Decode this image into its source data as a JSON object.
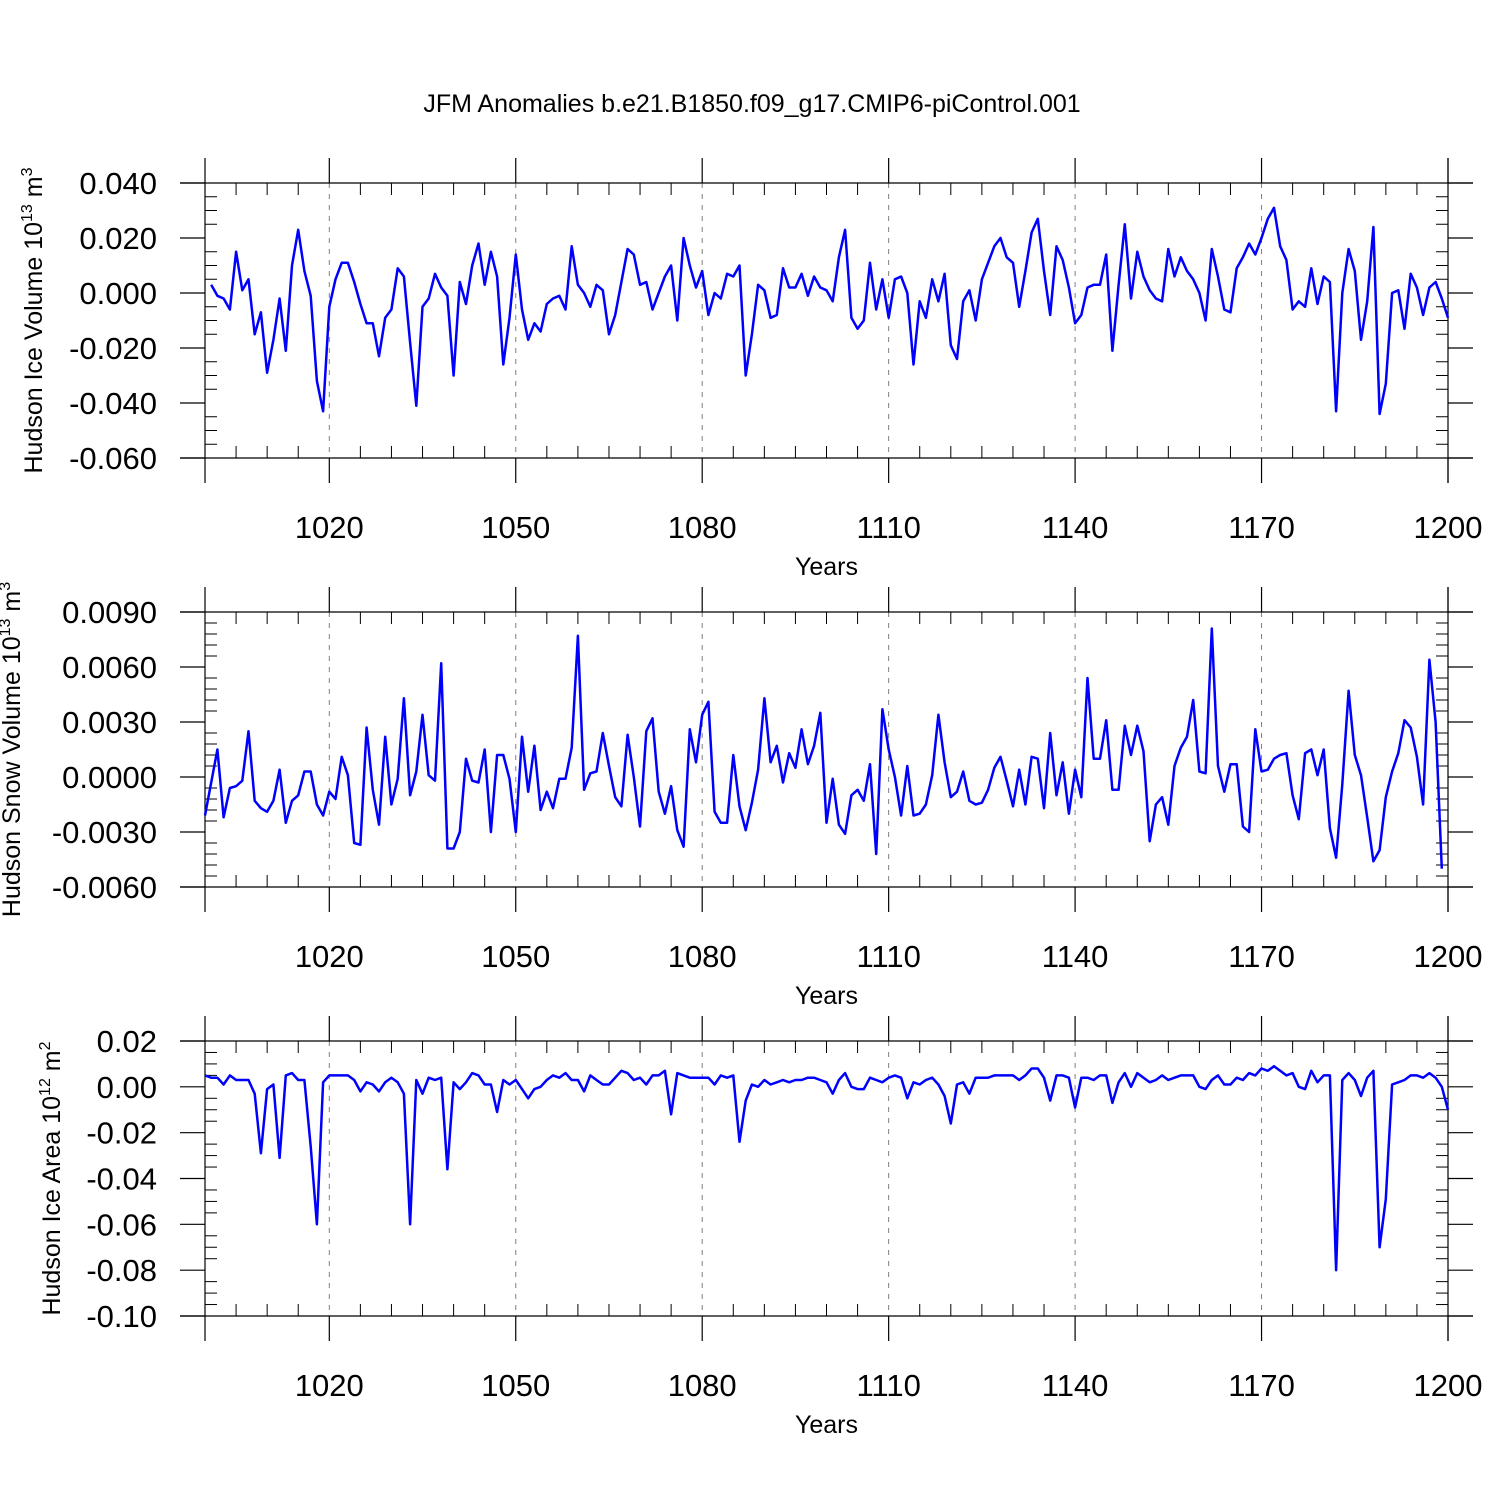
{
  "title": "JFM Anomalies b.e21.B1850.f09_g17.CMIP6-piControl.001",
  "colors": {
    "line": "#0000ff",
    "axis": "#000000",
    "grid": "#808080"
  },
  "chart_data": [
    {
      "type": "line",
      "ylabel": "Hudson Ice Volume 10",
      "ylabel_exp": "13",
      "ylabel_unit": " m",
      "ylabel_unit_exp": "3",
      "xlabel": "Years",
      "xlim": [
        1000,
        1200
      ],
      "ylim": [
        -0.06,
        0.04
      ],
      "x_ticks": [
        1020,
        1050,
        1080,
        1110,
        1140,
        1170,
        1200
      ],
      "x_tick_labels": [
        "1020",
        "1050",
        "1080",
        "1110",
        "1140",
        "1170",
        "1200"
      ],
      "y_ticks": [
        -0.06,
        -0.04,
        -0.02,
        0.0,
        0.02,
        0.04
      ],
      "y_tick_labels": [
        "-0.060",
        "-0.040",
        "-0.020",
        "0.000",
        "0.020",
        "0.040"
      ],
      "y_minor": 0.005,
      "grid": "vertical-dashed",
      "x_start": 1001,
      "values": [
        0.003,
        -0.001,
        -0.002,
        -0.006,
        0.015,
        0.001,
        0.005,
        -0.015,
        -0.007,
        -0.029,
        -0.017,
        -0.002,
        -0.021,
        0.01,
        0.023,
        0.008,
        -0.001,
        -0.032,
        -0.043,
        -0.005,
        0.005,
        0.011,
        0.011,
        0.004,
        -0.004,
        -0.011,
        -0.011,
        -0.023,
        -0.009,
        -0.006,
        0.009,
        0.006,
        -0.018,
        -0.041,
        -0.005,
        -0.002,
        0.007,
        0.002,
        -0.001,
        -0.03,
        0.004,
        -0.004,
        0.01,
        0.018,
        0.003,
        0.015,
        0.006,
        -0.026,
        -0.009,
        0.014,
        -0.006,
        -0.017,
        -0.011,
        -0.014,
        -0.004,
        -0.002,
        -0.001,
        -0.006,
        0.017,
        0.003,
        0.0,
        -0.005,
        0.003,
        0.001,
        -0.015,
        -0.008,
        0.004,
        0.016,
        0.014,
        0.003,
        0.004,
        -0.006,
        0.0,
        0.006,
        0.01,
        -0.01,
        0.02,
        0.01,
        0.002,
        0.008,
        -0.008,
        0.0,
        -0.002,
        0.007,
        0.006,
        0.01,
        -0.03,
        -0.015,
        0.003,
        0.001,
        -0.009,
        -0.008,
        0.009,
        0.002,
        0.002,
        0.007,
        -0.001,
        0.006,
        0.002,
        0.001,
        -0.003,
        0.013,
        0.023,
        -0.009,
        -0.013,
        -0.01,
        0.011,
        -0.006,
        0.005,
        -0.009,
        0.005,
        0.006,
        0.0,
        -0.026,
        -0.003,
        -0.009,
        0.005,
        -0.003,
        0.007,
        -0.019,
        -0.024,
        -0.003,
        0.001,
        -0.01,
        0.005,
        0.011,
        0.017,
        0.02,
        0.013,
        0.011,
        -0.005,
        0.008,
        0.022,
        0.027,
        0.008,
        -0.008,
        0.017,
        0.012,
        0.002,
        -0.011,
        -0.008,
        0.002,
        0.003,
        0.003,
        0.014,
        -0.021,
        0.003,
        0.025,
        -0.002,
        0.015,
        0.006,
        0.001,
        -0.002,
        -0.003,
        0.016,
        0.006,
        0.013,
        0.008,
        0.005,
        0.0,
        -0.01,
        0.016,
        0.006,
        -0.006,
        -0.007,
        0.009,
        0.013,
        0.018,
        0.014,
        0.02,
        0.027,
        0.031,
        0.017,
        0.012,
        -0.006,
        -0.003,
        -0.005,
        0.009,
        -0.004,
        0.006,
        0.004,
        -0.043,
        0.0,
        0.016,
        0.008,
        -0.017,
        -0.003,
        0.024,
        -0.044,
        -0.033,
        0.0,
        0.001,
        -0.013,
        0.007,
        0.002,
        -0.008,
        0.002,
        0.004,
        -0.002,
        -0.009
      ]
    },
    {
      "type": "line",
      "ylabel": "Hudson Snow Volume 10",
      "ylabel_exp": "13",
      "ylabel_unit": " m",
      "ylabel_unit_exp": "3",
      "xlabel": "Years",
      "xlim": [
        1000,
        1200
      ],
      "ylim": [
        -0.006,
        0.009
      ],
      "x_ticks": [
        1020,
        1050,
        1080,
        1110,
        1140,
        1170,
        1200
      ],
      "x_tick_labels": [
        "1020",
        "1050",
        "1080",
        "1110",
        "1140",
        "1170",
        "1200"
      ],
      "y_ticks": [
        -0.006,
        -0.003,
        0.0,
        0.003,
        0.006,
        0.009
      ],
      "y_tick_labels": [
        "-0.0060",
        "-0.0030",
        "0.0000",
        "0.0030",
        "0.0060",
        "0.0090"
      ],
      "y_minor": 0.0006,
      "grid": "vertical-dashed",
      "x_start": 1000,
      "values": [
        -0.0021,
        -0.0003,
        0.0015,
        -0.0022,
        -0.0006,
        -0.0005,
        -0.0002,
        0.0025,
        -0.0013,
        -0.0017,
        -0.0019,
        -0.0013,
        0.0004,
        -0.0025,
        -0.0013,
        -0.001,
        0.0003,
        0.0003,
        -0.0015,
        -0.0021,
        -0.0008,
        -0.0012,
        0.0011,
        0.0001,
        -0.0036,
        -0.0037,
        0.0027,
        -0.0007,
        -0.0026,
        0.0022,
        -0.0015,
        -0.0001,
        0.0043,
        -0.001,
        0.0003,
        0.0034,
        0.0001,
        -0.0002,
        0.0062,
        -0.0039,
        -0.0039,
        -0.003,
        0.001,
        -0.0002,
        -0.0003,
        0.0015,
        -0.003,
        0.0012,
        0.0012,
        -0.0001,
        -0.003,
        0.0022,
        -0.0008,
        0.0017,
        -0.0018,
        -0.0008,
        -0.0017,
        -0.0001,
        -0.0001,
        0.0016,
        0.0077,
        -0.0007,
        0.0002,
        0.0003,
        0.0024,
        0.0006,
        -0.0011,
        -0.0016,
        0.0023,
        0.0,
        -0.0027,
        0.0025,
        0.0032,
        -0.0008,
        -0.002,
        -0.0005,
        -0.0029,
        -0.0038,
        0.0026,
        0.0008,
        0.0034,
        0.0041,
        -0.0019,
        -0.0025,
        -0.0025,
        0.0012,
        -0.0016,
        -0.0029,
        -0.0014,
        0.0004,
        0.0043,
        0.0008,
        0.0017,
        -0.0003,
        0.0013,
        0.0005,
        0.0026,
        0.0007,
        0.0017,
        0.0035,
        -0.0025,
        -0.0001,
        -0.0026,
        -0.0031,
        -0.001,
        -0.0007,
        -0.0013,
        0.0007,
        -0.0042,
        0.0037,
        0.0015,
        0.0,
        -0.0021,
        0.0006,
        -0.0021,
        -0.002,
        -0.0015,
        0.0001,
        0.0034,
        0.0008,
        -0.0011,
        -0.0008,
        0.0003,
        -0.0013,
        -0.0015,
        -0.0014,
        -0.0007,
        0.0005,
        0.0011,
        -0.0002,
        -0.0016,
        0.0004,
        -0.0015,
        0.0011,
        0.001,
        -0.0017,
        0.0024,
        -0.001,
        0.0008,
        -0.002,
        0.0004,
        -0.0011,
        0.0054,
        0.001,
        0.001,
        0.0031,
        -0.0007,
        -0.0007,
        0.0028,
        0.0012,
        0.0028,
        0.0014,
        -0.0035,
        -0.0015,
        -0.0011,
        -0.0026,
        0.0006,
        0.0016,
        0.0022,
        0.0042,
        0.0003,
        0.0002,
        0.0081,
        0.0006,
        -0.0008,
        0.0007,
        0.0007,
        -0.0027,
        -0.003,
        0.0026,
        0.0003,
        0.0004,
        0.001,
        0.0012,
        0.0013,
        -0.001,
        -0.0023,
        0.0013,
        0.0015,
        0.0001,
        0.0015,
        -0.0028,
        -0.0044,
        -0.0004,
        0.0047,
        0.0012,
        0.0001,
        -0.0022,
        -0.0046,
        -0.004,
        -0.0011,
        0.0003,
        0.0013,
        0.0031,
        0.0027,
        0.0011,
        -0.0015,
        0.0064,
        0.003,
        -0.005
      ]
    },
    {
      "type": "line",
      "ylabel": "Hudson Ice Area 10",
      "ylabel_exp": "12",
      "ylabel_unit": " m",
      "ylabel_unit_exp": "2",
      "xlabel": "Years",
      "xlim": [
        1000,
        1200
      ],
      "ylim": [
        -0.1,
        0.02
      ],
      "x_ticks": [
        1020,
        1050,
        1080,
        1110,
        1140,
        1170,
        1200
      ],
      "x_tick_labels": [
        "1020",
        "1050",
        "1080",
        "1110",
        "1140",
        "1170",
        "1200"
      ],
      "y_ticks": [
        -0.1,
        -0.08,
        -0.06,
        -0.04,
        -0.02,
        0.0,
        0.02
      ],
      "y_tick_labels": [
        "-0.10",
        "-0.08",
        "-0.06",
        "-0.04",
        "-0.02",
        "0.00",
        "0.02"
      ],
      "y_minor": 0.005,
      "grid": "vertical-dashed",
      "x_start": 1000,
      "values": [
        0.005,
        0.004,
        0.004,
        0.001,
        0.005,
        0.003,
        0.003,
        0.003,
        -0.003,
        -0.029,
        -0.001,
        0.001,
        -0.031,
        0.005,
        0.006,
        0.003,
        0.003,
        -0.026,
        -0.06,
        0.002,
        0.005,
        0.005,
        0.005,
        0.005,
        0.003,
        -0.002,
        0.002,
        0.001,
        -0.002,
        0.002,
        0.004,
        0.002,
        -0.003,
        -0.06,
        0.003,
        -0.003,
        0.004,
        0.003,
        0.004,
        -0.036,
        0.002,
        -0.001,
        0.002,
        0.006,
        0.005,
        0.001,
        0.001,
        -0.011,
        0.003,
        0.001,
        0.003,
        -0.001,
        -0.005,
        -0.001,
        0.0,
        0.003,
        0.005,
        0.004,
        0.006,
        0.003,
        0.003,
        -0.002,
        0.005,
        0.003,
        0.001,
        0.001,
        0.004,
        0.007,
        0.006,
        0.003,
        0.004,
        0.001,
        0.005,
        0.005,
        0.007,
        -0.012,
        0.006,
        0.005,
        0.004,
        0.004,
        0.004,
        0.004,
        0.001,
        0.005,
        0.004,
        0.005,
        -0.024,
        -0.006,
        0.001,
        0.0,
        0.003,
        0.001,
        0.002,
        0.003,
        0.002,
        0.003,
        0.003,
        0.004,
        0.004,
        0.003,
        0.002,
        -0.003,
        0.003,
        0.006,
        0.0,
        -0.001,
        -0.001,
        0.004,
        0.003,
        0.002,
        0.004,
        0.005,
        0.004,
        -0.005,
        0.002,
        0.001,
        0.003,
        0.004,
        0.001,
        -0.004,
        -0.016,
        0.001,
        0.002,
        -0.003,
        0.004,
        0.004,
        0.004,
        0.005,
        0.005,
        0.005,
        0.005,
        0.003,
        0.005,
        0.008,
        0.008,
        0.004,
        -0.006,
        0.005,
        0.005,
        0.004,
        -0.009,
        0.004,
        0.004,
        0.003,
        0.005,
        0.005,
        -0.007,
        0.002,
        0.006,
        0.0,
        0.006,
        0.004,
        0.002,
        0.003,
        0.005,
        0.003,
        0.004,
        0.005,
        0.005,
        0.005,
        0.0,
        -0.001,
        0.003,
        0.005,
        0.001,
        0.001,
        0.004,
        0.003,
        0.006,
        0.005,
        0.008,
        0.007,
        0.009,
        0.007,
        0.005,
        0.006,
        0.0,
        -0.001,
        0.007,
        0.002,
        0.005,
        0.005,
        -0.08,
        0.003,
        0.006,
        0.003,
        -0.004,
        0.004,
        0.007,
        -0.07,
        -0.049,
        0.001,
        0.002,
        0.003,
        0.005,
        0.005,
        0.004,
        0.006,
        0.004,
        0.0,
        -0.01
      ]
    }
  ]
}
